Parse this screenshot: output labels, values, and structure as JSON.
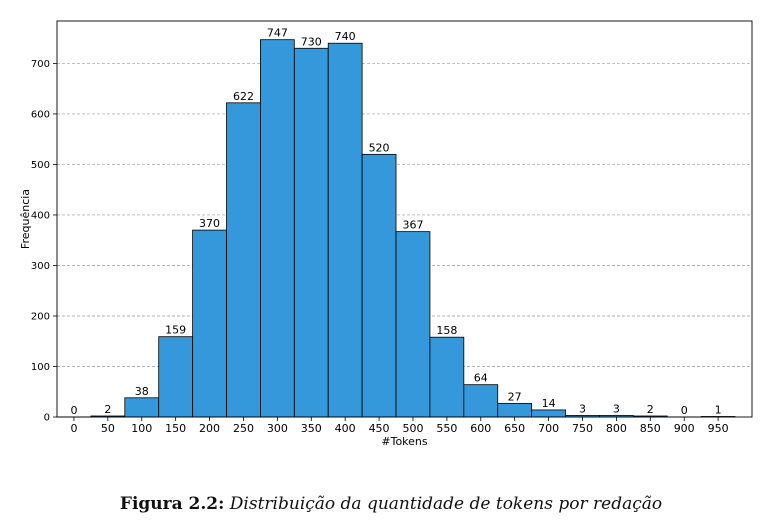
{
  "chart_data": {
    "type": "bar",
    "xlabel": "#Tokens",
    "ylabel": "Frequência",
    "x_ticks": [
      0,
      50,
      100,
      150,
      200,
      250,
      300,
      350,
      400,
      450,
      500,
      550,
      600,
      650,
      700,
      750,
      800,
      850,
      900,
      950
    ],
    "y_ticks": [
      0,
      100,
      200,
      300,
      400,
      500,
      600,
      700
    ],
    "ylim": [
      0,
      784
    ],
    "xlim": [
      -25,
      1000
    ],
    "bin_starts": [
      0,
      50,
      100,
      150,
      200,
      250,
      300,
      350,
      400,
      450,
      500,
      550,
      600,
      650,
      700,
      750,
      800,
      850,
      900,
      950
    ],
    "values": [
      0,
      2,
      38,
      159,
      370,
      622,
      747,
      730,
      740,
      520,
      367,
      158,
      64,
      27,
      14,
      3,
      3,
      2,
      0,
      1
    ],
    "grid": "horizontal dashed",
    "bar_color": "#3498db",
    "edge_color": "#000000"
  },
  "caption": {
    "label": "Figura 2.2:",
    "text": "Distribuição da quantidade de tokens por redação"
  }
}
